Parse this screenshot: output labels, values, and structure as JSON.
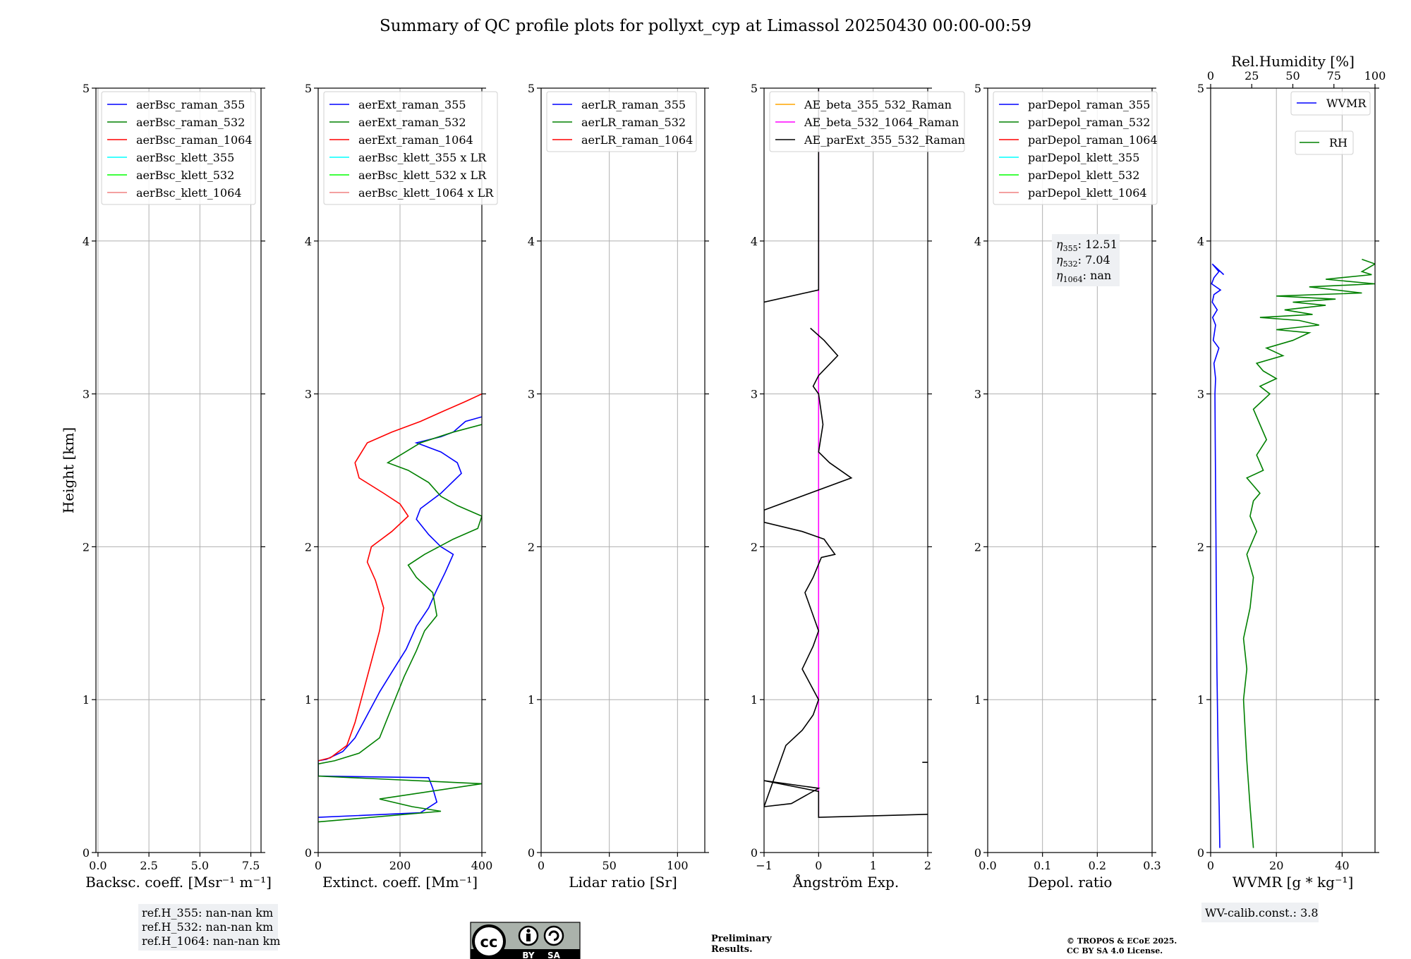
{
  "title": "Summary of QC profile plots for pollyxt_cyp at Limassol 20250430 00:00-00:59",
  "colors": {
    "blue": "#0000ff",
    "green": "#008000",
    "red": "#ff0000",
    "cyan": "#00ffff",
    "lime": "#00ff00",
    "salmon": "#f08080",
    "orange": "#ffa500",
    "magenta": "#ff00ff",
    "black": "#000000"
  },
  "chart_data": [
    {
      "type": "line",
      "xlabel": "Backsc. coeff. [Msr⁻¹ m⁻¹]",
      "ylabel": "Height [km]",
      "xlim": [
        -0.1,
        8.0
      ],
      "ylim": [
        0,
        5
      ],
      "xticks": [
        "0.0",
        "2.5",
        "5.0",
        "7.5"
      ],
      "xtick_values": [
        0,
        2.5,
        5,
        7.5
      ],
      "yticks": [
        "0",
        "1",
        "2",
        "3",
        "4",
        "5"
      ],
      "grid": true,
      "legend_position": "top-left",
      "series": [
        {
          "name": "aerBsc_raman_355",
          "color": "#0000ff",
          "x": [],
          "y": []
        },
        {
          "name": "aerBsc_raman_532",
          "color": "#008000",
          "x": [],
          "y": []
        },
        {
          "name": "aerBsc_raman_1064",
          "color": "#ff0000",
          "x": [],
          "y": []
        },
        {
          "name": "aerBsc_klett_355",
          "color": "#00ffff",
          "x": [],
          "y": []
        },
        {
          "name": "aerBsc_klett_532",
          "color": "#00ff00",
          "x": [],
          "y": []
        },
        {
          "name": "aerBsc_klett_1064",
          "color": "#f08080",
          "x": [],
          "y": []
        }
      ],
      "note": [
        "ref.H_355: nan-nan km",
        "ref.H_532: nan-nan km",
        "ref.H_1064: nan-nan km"
      ]
    },
    {
      "type": "line",
      "xlabel": "Extinct. coeff. [Mm⁻¹]",
      "xlim": [
        0,
        400
      ],
      "ylim": [
        0,
        5
      ],
      "xticks": [
        "0",
        "200",
        "400"
      ],
      "xtick_values": [
        0,
        200,
        400
      ],
      "yticks": [
        "0",
        "1",
        "2",
        "3",
        "4",
        "5"
      ],
      "grid": true,
      "legend_position": "top-left",
      "series": [
        {
          "name": "aerExt_raman_355",
          "color": "#0000ff",
          "x": [
            0,
            250,
            290,
            280,
            270,
            0,
            0,
            20,
            60,
            90,
            120,
            150,
            180,
            215,
            240,
            270,
            290,
            310,
            330,
            300,
            270,
            240,
            250,
            300,
            350,
            340,
            300,
            260,
            240,
            270,
            300,
            330,
            360,
            400
          ],
          "y": [
            0.23,
            0.26,
            0.33,
            0.42,
            0.49,
            0.5,
            0.6,
            0.61,
            0.66,
            0.75,
            0.9,
            1.05,
            1.18,
            1.33,
            1.48,
            1.6,
            1.72,
            1.83,
            1.95,
            2.0,
            2.08,
            2.18,
            2.25,
            2.35,
            2.48,
            2.55,
            2.62,
            2.66,
            2.68,
            2.7,
            2.72,
            2.75,
            2.82,
            2.85
          ]
        },
        {
          "name": "aerExt_raman_532",
          "color": "#008000",
          "x": [
            0,
            300,
            230,
            150,
            400,
            0,
            0,
            40,
            100,
            150,
            180,
            210,
            240,
            260,
            290,
            280,
            240,
            220,
            260,
            330,
            390,
            400,
            340,
            300,
            270,
            220,
            170,
            250,
            330,
            400
          ],
          "y": [
            0.2,
            0.27,
            0.3,
            0.35,
            0.45,
            0.5,
            0.58,
            0.6,
            0.65,
            0.75,
            0.95,
            1.15,
            1.32,
            1.45,
            1.55,
            1.7,
            1.8,
            1.88,
            1.95,
            2.05,
            2.12,
            2.2,
            2.27,
            2.33,
            2.42,
            2.5,
            2.55,
            2.68,
            2.75,
            2.8
          ]
        },
        {
          "name": "aerExt_raman_1064",
          "color": "#ff0000",
          "x": [
            0,
            30,
            70,
            90,
            110,
            130,
            150,
            160,
            140,
            120,
            130,
            180,
            220,
            200,
            160,
            100,
            90,
            120,
            180,
            250,
            300,
            360,
            400
          ],
          "y": [
            0.6,
            0.62,
            0.7,
            0.85,
            1.05,
            1.25,
            1.45,
            1.6,
            1.78,
            1.9,
            2.0,
            2.1,
            2.2,
            2.28,
            2.35,
            2.45,
            2.55,
            2.68,
            2.75,
            2.82,
            2.88,
            2.95,
            3.0
          ]
        },
        {
          "name": "aerBsc_klett_355 x LR",
          "color": "#00ffff",
          "x": [],
          "y": []
        },
        {
          "name": "aerBsc_klett_532 x LR",
          "color": "#00ff00",
          "x": [],
          "y": []
        },
        {
          "name": "aerBsc_klett_1064 x LR",
          "color": "#f08080",
          "x": [],
          "y": []
        }
      ]
    },
    {
      "type": "line",
      "xlabel": "Lidar ratio [Sr]",
      "xlim": [
        0,
        120
      ],
      "ylim": [
        0,
        5
      ],
      "xticks": [
        "0",
        "50",
        "100"
      ],
      "xtick_values": [
        0,
        50,
        100
      ],
      "yticks": [
        "0",
        "1",
        "2",
        "3",
        "4",
        "5"
      ],
      "grid": true,
      "legend_position": "top-left",
      "series": [
        {
          "name": "aerLR_raman_355",
          "color": "#0000ff",
          "x": [],
          "y": []
        },
        {
          "name": "aerLR_raman_532",
          "color": "#008000",
          "x": [],
          "y": []
        },
        {
          "name": "aerLR_raman_1064",
          "color": "#ff0000",
          "x": [],
          "y": []
        }
      ]
    },
    {
      "type": "line",
      "xlabel": "Ångström Exp.",
      "xlim": [
        -1,
        2
      ],
      "ylim": [
        0,
        5
      ],
      "xticks": [
        "−1",
        "0",
        "1",
        "2"
      ],
      "xtick_values": [
        -1,
        0,
        1,
        2
      ],
      "yticks": [
        "0",
        "1",
        "2",
        "3",
        "4",
        "5"
      ],
      "grid": true,
      "legend_position": "top-left",
      "series": [
        {
          "name": "AE_beta_355_532_Raman",
          "color": "#ffa500",
          "x": [],
          "y": []
        },
        {
          "name": "AE_beta_532_1064_Raman",
          "color": "#ff00ff",
          "x": [
            0,
            0
          ],
          "y": [
            0.23,
            5
          ]
        },
        {
          "name": "AE_parExt_355_532_Raman",
          "color": "#000000",
          "x": [
            2,
            0,
            0,
            -1,
            0,
            -0.5,
            -1,
            -0.6,
            -0.3,
            -0.1,
            0,
            -0.15,
            -0.3,
            -0.1,
            0,
            -0.25,
            -0.1,
            0.05,
            0.3,
            0.1,
            -0.3,
            -1,
            -1,
            0.6,
            0.2,
            0,
            0.08,
            0,
            -0.1,
            0,
            0.35,
            0.1,
            -0.15
          ],
          "y": [
            0.25,
            0.23,
            0.4,
            0.47,
            0.42,
            0.32,
            0.3,
            0.7,
            0.8,
            0.9,
            1.0,
            1.1,
            1.2,
            1.35,
            1.45,
            1.7,
            1.8,
            1.93,
            1.95,
            2.05,
            2.1,
            2.16,
            2.24,
            2.45,
            2.55,
            2.62,
            2.8,
            3.0,
            3.05,
            3.12,
            3.25,
            3.35,
            3.43
          ]
        },
        {
          "name": "",
          "color": "#000000",
          "x": [
            -1,
            0,
            0
          ],
          "y": [
            3.6,
            3.68,
            5
          ]
        },
        {
          "name": "",
          "color": "#000000",
          "x": [
            1.9,
            2
          ],
          "y": [
            0.59,
            0.59
          ]
        }
      ]
    },
    {
      "type": "line",
      "xlabel": "Depol. ratio",
      "xlim": [
        0,
        0.3
      ],
      "ylim": [
        0,
        5
      ],
      "xticks": [
        "0.0",
        "0.1",
        "0.2",
        "0.3"
      ],
      "xtick_values": [
        0,
        0.1,
        0.2,
        0.3
      ],
      "yticks": [
        "0",
        "1",
        "2",
        "3",
        "4",
        "5"
      ],
      "grid": true,
      "legend_position": "top-left",
      "series": [
        {
          "name": "parDepol_raman_355",
          "color": "#0000ff",
          "x": [],
          "y": []
        },
        {
          "name": "parDepol_raman_532",
          "color": "#008000",
          "x": [],
          "y": []
        },
        {
          "name": "parDepol_raman_1064",
          "color": "#ff0000",
          "x": [],
          "y": []
        },
        {
          "name": "parDepol_klett_355",
          "color": "#00ffff",
          "x": [],
          "y": []
        },
        {
          "name": "parDepol_klett_532",
          "color": "#00ff00",
          "x": [],
          "y": []
        },
        {
          "name": "parDepol_klett_1064",
          "color": "#f08080",
          "x": [],
          "y": []
        }
      ],
      "eta": [
        {
          "sub": "355",
          "value": "12.51"
        },
        {
          "sub": "532",
          "value": "7.04"
        },
        {
          "sub": "1064",
          "value": "nan"
        }
      ]
    },
    {
      "type": "line",
      "xlabel": "WVMR [g * kg⁻¹]",
      "x2label": "Rel.Humidity [%]",
      "xlim": [
        0,
        50
      ],
      "x2lim": [
        0,
        100
      ],
      "ylim": [
        0,
        5
      ],
      "xticks": [
        "0",
        "20",
        "40"
      ],
      "xtick_values": [
        0,
        20,
        40
      ],
      "x2ticks": [
        "0",
        "25",
        "50",
        "75",
        "100"
      ],
      "x2tick_values": [
        0,
        25,
        50,
        75,
        100
      ],
      "yticks": [
        "0",
        "1",
        "2",
        "3",
        "4",
        "5"
      ],
      "grid": true,
      "series": [
        {
          "name": "WVMR",
          "color": "#0000ff",
          "axis": "x",
          "x": [
            2.8,
            2.6,
            2.3,
            2.1,
            1.9,
            1.8,
            1.7,
            1.6,
            1.5,
            1.4,
            1.3,
            1.5,
            1.0,
            2.5,
            0.8,
            1.5,
            0.6,
            2.0,
            0.5,
            1.0,
            3.0,
            0.3,
            1.0,
            2.5,
            0.5,
            4.0
          ],
          "y": [
            0.03,
            0.3,
            0.6,
            0.9,
            1.2,
            1.5,
            1.8,
            2.1,
            2.4,
            2.7,
            3.0,
            3.1,
            3.2,
            3.3,
            3.35,
            3.45,
            3.5,
            3.55,
            3.6,
            3.65,
            3.68,
            3.72,
            3.76,
            3.8,
            3.85,
            3.78
          ]
        },
        {
          "name": "RH",
          "color": "#008000",
          "axis": "x2",
          "x": [
            26,
            24,
            22,
            21,
            20,
            22,
            20,
            24,
            26,
            22,
            28,
            24,
            26,
            30,
            22,
            32,
            28,
            34,
            30,
            26,
            36,
            30,
            40,
            32,
            28,
            44,
            34,
            50,
            60,
            40,
            66,
            54,
            30,
            62,
            45,
            70,
            50,
            76,
            40,
            92,
            60,
            100,
            70,
            98,
            92,
            100,
            92
          ],
          "y": [
            0.03,
            0.3,
            0.6,
            0.8,
            1.0,
            1.2,
            1.4,
            1.6,
            1.8,
            1.95,
            2.1,
            2.2,
            2.3,
            2.35,
            2.45,
            2.5,
            2.6,
            2.7,
            2.8,
            2.9,
            3.0,
            3.05,
            3.1,
            3.15,
            3.2,
            3.25,
            3.3,
            3.35,
            3.4,
            3.42,
            3.45,
            3.48,
            3.5,
            3.52,
            3.55,
            3.58,
            3.6,
            3.62,
            3.64,
            3.66,
            3.7,
            3.72,
            3.75,
            3.78,
            3.8,
            3.85,
            3.88
          ]
        }
      ],
      "note": [
        "WV-calib.const.: 3.8"
      ]
    }
  ],
  "license": {
    "by": "BY",
    "sa": "SA"
  },
  "preliminary": [
    "Preliminary",
    "Results."
  ],
  "copyright": [
    "© TROPOS & ECoE 2025.",
    "CC BY SA 4.0 License."
  ]
}
